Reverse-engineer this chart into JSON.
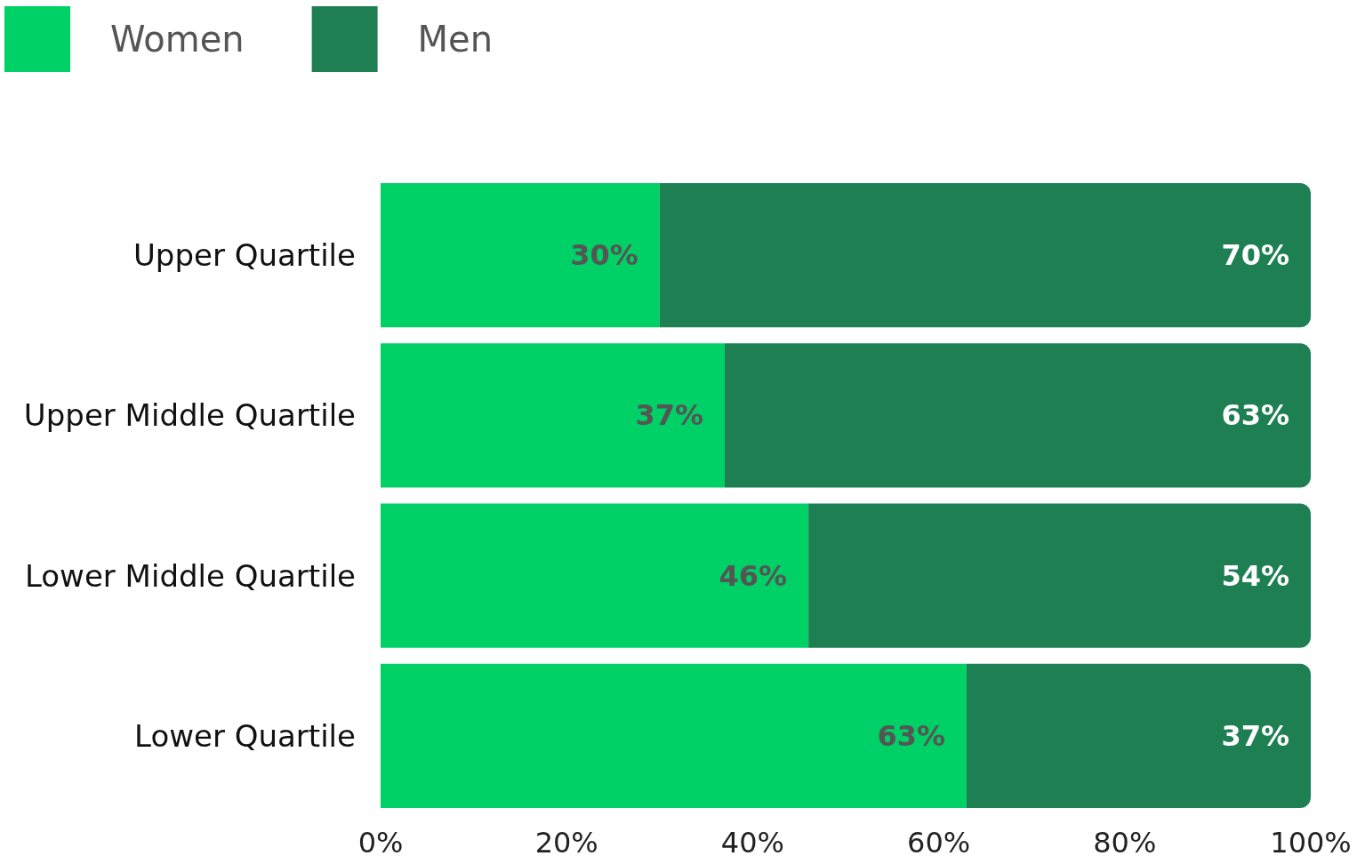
{
  "chart_data": {
    "type": "bar",
    "orientation": "horizontal",
    "stacked": true,
    "categories": [
      "Upper Quartile",
      "Upper Middle Quartile",
      "Lower Middle Quartile",
      "Lower Quartile"
    ],
    "series": [
      {
        "name": "Women",
        "color": "#00d166",
        "values": [
          30,
          37,
          46,
          63
        ],
        "value_labels": [
          "30%",
          "37%",
          "46%",
          "63%"
        ]
      },
      {
        "name": "Men",
        "color": "#1d7f52",
        "values": [
          70,
          63,
          54,
          37
        ],
        "value_labels": [
          "70%",
          "63%",
          "54%",
          "37%"
        ]
      }
    ],
    "xlim": [
      0,
      100
    ],
    "xticks": [
      {
        "value": 0,
        "label": "0%"
      },
      {
        "value": 20,
        "label": "20%"
      },
      {
        "value": 40,
        "label": "40%"
      },
      {
        "value": 60,
        "label": "60%"
      },
      {
        "value": 80,
        "label": "80%"
      },
      {
        "value": 100,
        "label": "100%"
      }
    ],
    "legend": "top left",
    "grid": false
  }
}
